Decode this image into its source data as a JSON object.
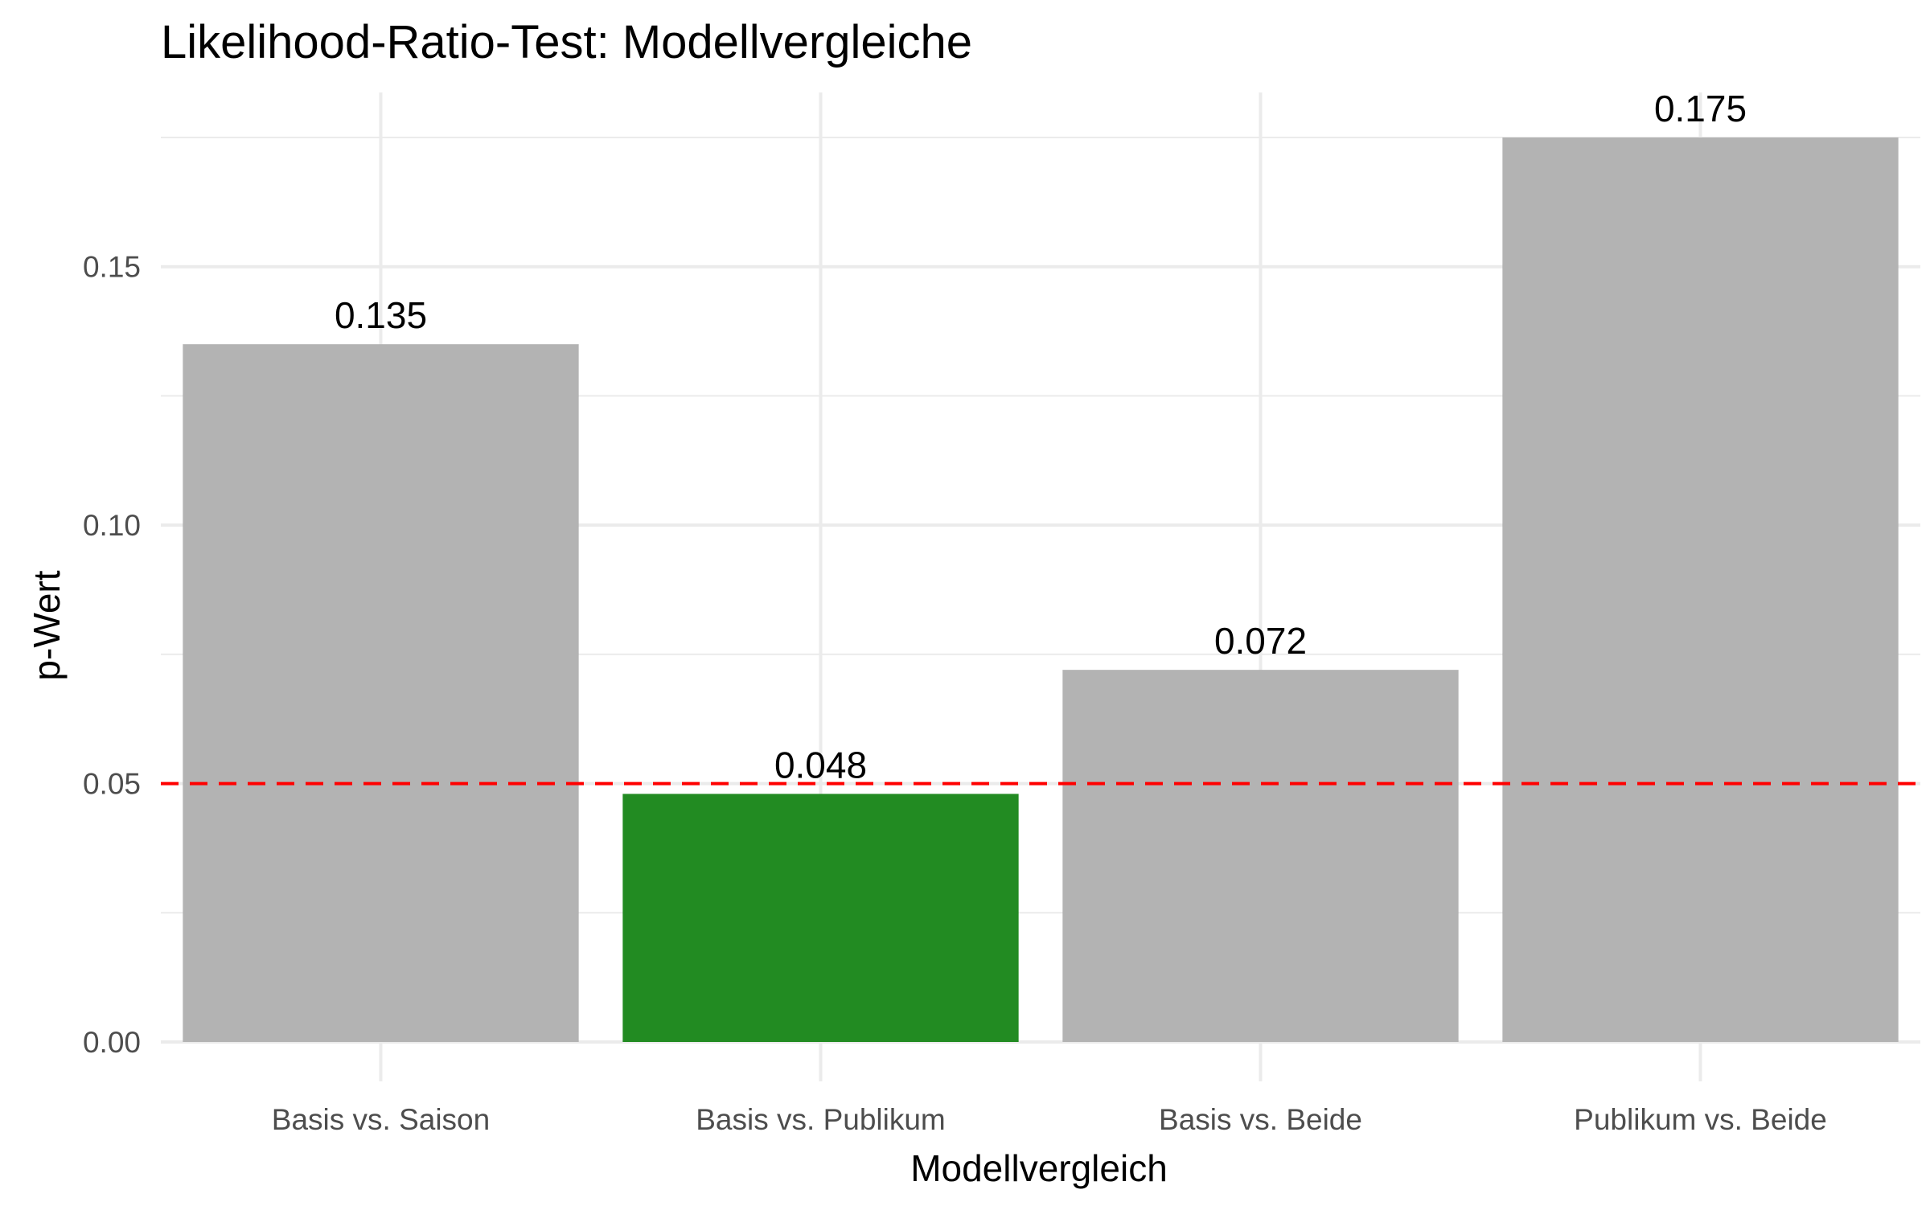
{
  "chart_data": {
    "type": "bar",
    "title": "Likelihood-Ratio-Test: Modellvergleiche",
    "xlabel": "Modellvergleich",
    "ylabel": "p-Wert",
    "categories": [
      "Basis vs. Saison",
      "Basis vs. Publikum",
      "Basis vs. Beide",
      "Publikum vs. Beide"
    ],
    "values": [
      0.135,
      0.048,
      0.072,
      0.175
    ],
    "value_labels": [
      "0.135",
      "0.048",
      "0.072",
      "0.175"
    ],
    "bar_colors": [
      "#b3b3b3",
      "#228b22",
      "#b3b3b3",
      "#b3b3b3"
    ],
    "ylim": [
      0,
      0.184
    ],
    "yticks": [
      0,
      0.05,
      0.1,
      0.15
    ],
    "ytick_labels": [
      "0.00",
      "0.05",
      "0.10",
      "0.15"
    ],
    "reference_line": {
      "y": 0.05,
      "color": "#ff0000",
      "style": "dashed"
    },
    "grid": true,
    "legend": false
  }
}
